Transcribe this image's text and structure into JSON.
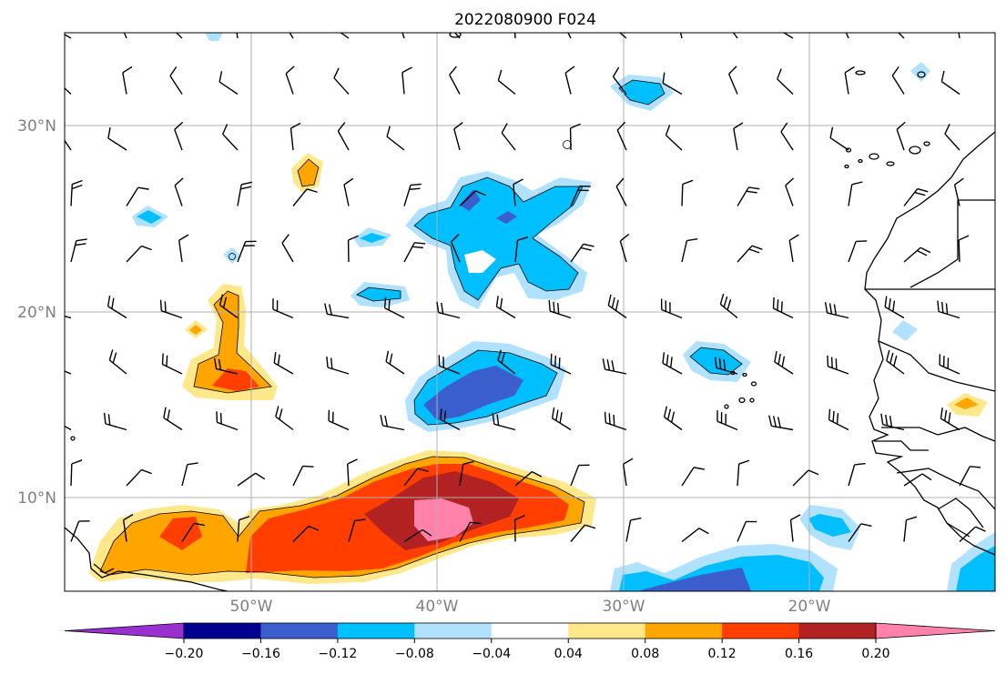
{
  "title": "2022080900 F024",
  "grid": true,
  "lat_labels": [
    "30°N",
    "20°N",
    "10°N"
  ],
  "lon_labels": [
    "50°W",
    "40°W",
    "30°W",
    "20°W"
  ],
  "colorbar": {
    "extend": "both",
    "colors": [
      "#9b30d0",
      "#000090",
      "#3a5fcd",
      "#00bfff",
      "#b0e2ff",
      "#ffffff",
      "#ffe88a",
      "#ffa500",
      "#ff3e00",
      "#b22222",
      "#ff82ab"
    ],
    "tick_labels": [
      "−0.20",
      "−0.16",
      "−0.12",
      "−0.08",
      "−0.04",
      "0.04",
      "0.08",
      "0.12",
      "0.16",
      "0.20"
    ]
  },
  "layers": {
    "filled_field": "diverging shaded field",
    "vectors": "wind barbs",
    "coastlines": true
  }
}
